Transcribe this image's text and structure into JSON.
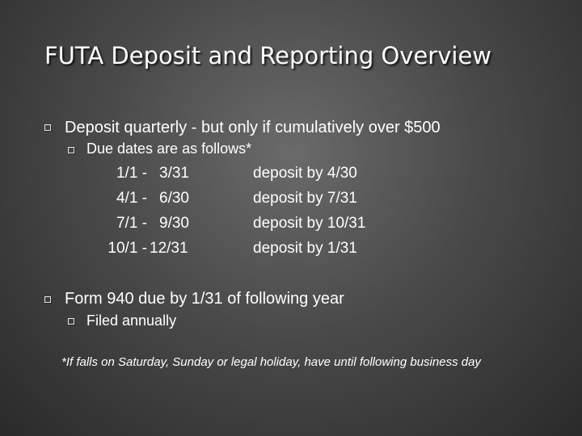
{
  "slide": {
    "title": "FUTA Deposit and Reporting Overview",
    "bullets": [
      {
        "text": "Deposit quarterly - but only if cumulatively over $500"
      },
      {
        "text": "Due dates are as follows*"
      },
      {
        "text": "Form 940 due by 1/31 of following year"
      },
      {
        "text": "Filed annually"
      }
    ],
    "schedule": [
      {
        "start": "1/1 -",
        "end": "3/31",
        "deposit": "deposit by 4/30"
      },
      {
        "start": "4/1 -",
        "end": "6/30",
        "deposit": "deposit by 7/31"
      },
      {
        "start": "7/1 -",
        "end": "9/30",
        "deposit": "deposit by 10/31"
      },
      {
        "start": "10/1 -",
        "end": "12/31",
        "deposit": "deposit by 1/31"
      }
    ],
    "footnote": "*If falls on Saturday, Sunday or legal holiday, have until following business day"
  },
  "colors": {
    "text": "#ffffff",
    "background": "#4a4a4a"
  },
  "icons": {
    "bullet": "hollow-square-bullet-icon"
  }
}
